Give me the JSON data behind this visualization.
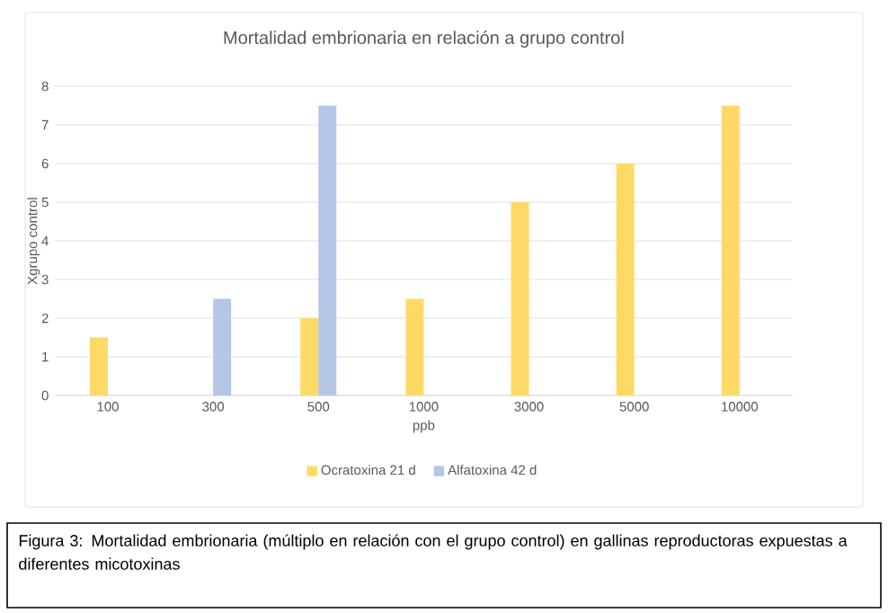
{
  "chart_data": {
    "type": "bar",
    "title": "Mortalidad embrionaria en relación a grupo control",
    "xlabel": "ppb",
    "ylabel": "Xgrupo control",
    "categories": [
      "100",
      "300",
      "500",
      "1000",
      "3000",
      "5000",
      "10000"
    ],
    "series": [
      {
        "name": "Ocratoxina 21 d",
        "color": "#ffd966",
        "values": [
          1.5,
          null,
          2,
          2.5,
          5,
          6,
          7.5
        ]
      },
      {
        "name": "Alfatoxina 42 d",
        "color": "#b4c7e7",
        "values": [
          null,
          2.5,
          7.5,
          null,
          null,
          null,
          null
        ]
      }
    ],
    "ylim": [
      0,
      8
    ],
    "yticks": [
      0,
      1,
      2,
      3,
      4,
      5,
      6,
      7,
      8
    ],
    "grid": "y",
    "legend": "bottom",
    "annotations": [
      "Figura 3: Mortalidad embrionaria (múltiplo en relación con el grupo control) en gallinas reproductoras expuestas a diferentes micotoxinas"
    ]
  }
}
